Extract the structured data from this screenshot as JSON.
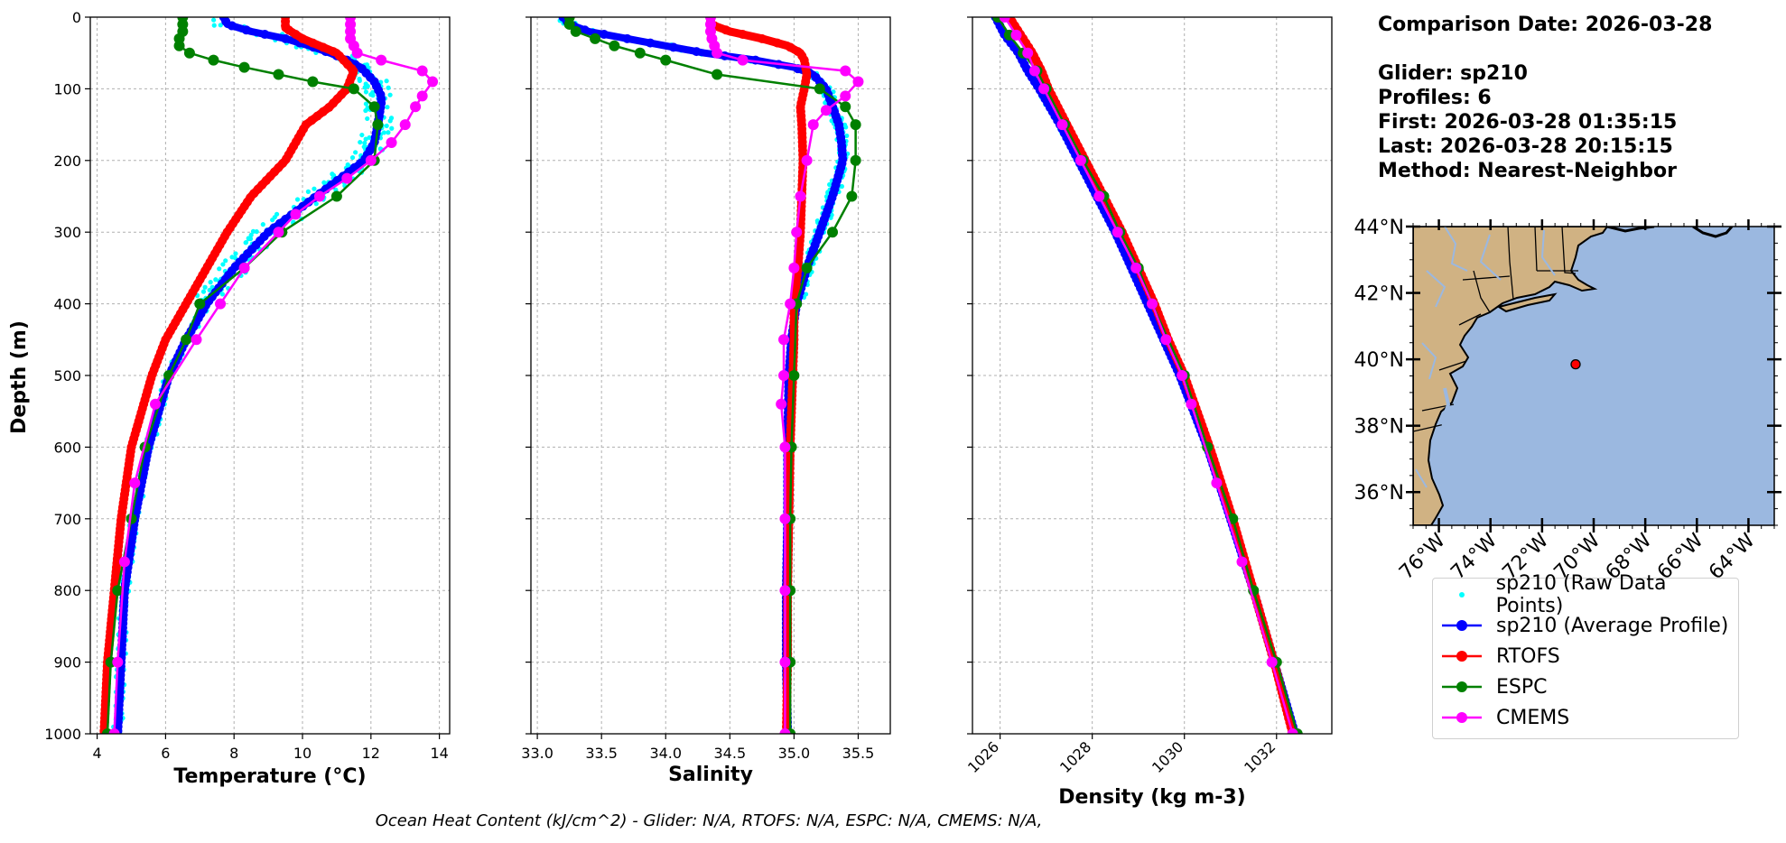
{
  "info": {
    "comparison_date": "Comparison Date: 2026-03-28",
    "glider": "Glider: sp210",
    "profiles": "Profiles: 6",
    "first": "First: 2026-03-28 01:35:15",
    "last": "Last: 2026-03-28 20:15:15",
    "method": "Method: Nearest-Neighbor"
  },
  "footer": "Ocean Heat Content (kJ/cm^2) - Glider: N/A,  RTOFS: N/A,  ESPC: N/A,  CMEMS: N/A,",
  "colors": {
    "raw": "#00ffff",
    "glider": "#0000ff",
    "rtofs": "#ff0000",
    "espc": "#008000",
    "cmems": "#ff00ff",
    "land": "#d0b283",
    "ocean": "#9bb8e0"
  },
  "legend": [
    {
      "key": "raw",
      "label": "sp210 (Raw Data Points)",
      "style": "dot"
    },
    {
      "key": "glider",
      "label": "sp210 (Average Profile)",
      "style": "line"
    },
    {
      "key": "rtofs",
      "label": "RTOFS",
      "style": "line"
    },
    {
      "key": "espc",
      "label": "ESPC",
      "style": "line"
    },
    {
      "key": "cmems",
      "label": "CMEMS",
      "style": "line"
    }
  ],
  "map": {
    "lat_ticks": [
      "44°N",
      "42°N",
      "40°N",
      "38°N",
      "36°N"
    ],
    "lat_values": [
      44,
      42,
      40,
      38,
      36
    ],
    "lon_ticks": [
      "76°W",
      "74°W",
      "72°W",
      "70°W",
      "68°W",
      "66°W",
      "64°W"
    ],
    "lon_values": [
      -76,
      -74,
      -72,
      -70,
      -68,
      -66,
      -64
    ],
    "lon_range": [
      -77,
      -63
    ],
    "lat_range": [
      35,
      44
    ],
    "marker": {
      "lon": -70.7,
      "lat": 39.85
    }
  },
  "chart_data": [
    {
      "type": "line",
      "xlabel": "Temperature (°C)",
      "ylabel": "Depth (m)",
      "xlim": [
        3.8,
        14.3
      ],
      "ylim": [
        1000,
        0
      ],
      "xticks": [
        4,
        6,
        8,
        10,
        12,
        14
      ],
      "yticks": [
        0,
        100,
        200,
        300,
        400,
        500,
        600,
        700,
        800,
        900,
        1000
      ],
      "grid": true,
      "series": [
        {
          "name": "sp210 (Average Profile)",
          "key": "glider",
          "depth": [
            0,
            10,
            20,
            30,
            40,
            50,
            60,
            70,
            80,
            90,
            100,
            110,
            120,
            150,
            175,
            200,
            250,
            300,
            350,
            400,
            450,
            500,
            600,
            700,
            800,
            900,
            1000
          ],
          "values": [
            7.7,
            7.8,
            8.5,
            9.5,
            10.2,
            10.8,
            11.3,
            11.7,
            11.9,
            12.1,
            12.2,
            12.3,
            12.3,
            12.2,
            12.1,
            11.8,
            10.4,
            9.0,
            8.0,
            7.2,
            6.6,
            6.1,
            5.5,
            5.1,
            4.8,
            4.7,
            4.6
          ]
        },
        {
          "name": "RTOFS",
          "key": "rtofs",
          "depth": [
            0,
            15,
            30,
            50,
            75,
            100,
            125,
            150,
            175,
            200,
            250,
            300,
            350,
            400,
            450,
            500,
            600,
            700,
            800,
            900,
            1000
          ],
          "values": [
            9.5,
            9.5,
            10.0,
            11.0,
            11.5,
            11.3,
            10.8,
            10.1,
            9.8,
            9.5,
            8.5,
            7.8,
            7.2,
            6.6,
            6.0,
            5.6,
            5.0,
            4.7,
            4.5,
            4.3,
            4.2
          ]
        },
        {
          "name": "ESPC",
          "key": "espc",
          "depth": [
            0,
            10,
            20,
            30,
            40,
            50,
            60,
            70,
            80,
            90,
            100,
            125,
            150,
            200,
            250,
            300,
            350,
            400,
            450,
            500,
            600,
            700,
            800,
            900,
            1000
          ],
          "values": [
            6.5,
            6.5,
            6.5,
            6.4,
            6.4,
            6.7,
            7.4,
            8.3,
            9.3,
            10.3,
            11.5,
            12.1,
            12.2,
            12.1,
            11.0,
            9.4,
            8.3,
            7.0,
            6.6,
            6.1,
            5.4,
            5.0,
            4.6,
            4.4,
            4.3
          ]
        },
        {
          "name": "CMEMS",
          "key": "cmems",
          "depth": [
            0,
            10,
            20,
            30,
            40,
            50,
            60,
            75,
            90,
            110,
            125,
            150,
            175,
            200,
            225,
            250,
            275,
            300,
            350,
            400,
            450,
            540,
            650,
            760,
            900,
            1000
          ],
          "values": [
            11.4,
            11.4,
            11.4,
            11.4,
            11.5,
            11.6,
            12.3,
            13.5,
            13.8,
            13.5,
            13.3,
            13.0,
            12.6,
            12.0,
            11.3,
            10.5,
            9.8,
            9.3,
            8.3,
            7.6,
            6.9,
            5.7,
            5.1,
            4.8,
            4.6,
            4.5
          ]
        }
      ]
    },
    {
      "type": "line",
      "xlabel": "Salinity",
      "xlim": [
        32.95,
        35.75
      ],
      "ylim": [
        1000,
        0
      ],
      "xticks": [
        33.0,
        33.5,
        34.0,
        34.5,
        35.0,
        35.5
      ],
      "yticks": [
        0,
        100,
        200,
        300,
        400,
        500,
        600,
        700,
        800,
        900,
        1000
      ],
      "grid": true,
      "series": [
        {
          "name": "sp210 (Average Profile)",
          "key": "glider",
          "depth": [
            0,
            10,
            20,
            30,
            40,
            50,
            60,
            70,
            80,
            90,
            100,
            125,
            150,
            175,
            200,
            250,
            300,
            350,
            400,
            450,
            500,
            600,
            700,
            800,
            900,
            1000
          ],
          "values": [
            33.2,
            33.25,
            33.4,
            33.7,
            34.0,
            34.3,
            34.7,
            35.0,
            35.15,
            35.2,
            35.25,
            35.3,
            35.35,
            35.37,
            35.38,
            35.3,
            35.2,
            35.1,
            35.02,
            34.98,
            34.96,
            34.95,
            34.95,
            34.94,
            34.94,
            34.95
          ]
        },
        {
          "name": "RTOFS",
          "key": "rtofs",
          "depth": [
            0,
            10,
            20,
            30,
            40,
            50,
            60,
            80,
            100,
            125,
            150,
            200,
            250,
            300,
            350,
            400,
            450,
            500,
            600,
            700,
            800,
            900,
            1000
          ],
          "values": [
            34.35,
            34.35,
            34.5,
            34.75,
            34.95,
            35.05,
            35.08,
            35.1,
            35.08,
            35.05,
            35.06,
            35.07,
            35.06,
            35.05,
            35.03,
            35.0,
            35.0,
            34.99,
            34.97,
            34.96,
            34.95,
            34.95,
            34.94
          ]
        },
        {
          "name": "ESPC",
          "key": "espc",
          "depth": [
            0,
            10,
            20,
            30,
            40,
            50,
            60,
            80,
            100,
            125,
            150,
            200,
            250,
            300,
            350,
            400,
            500,
            600,
            700,
            800,
            900,
            1000
          ],
          "values": [
            33.25,
            33.25,
            33.3,
            33.45,
            33.6,
            33.8,
            34.0,
            34.4,
            35.2,
            35.4,
            35.48,
            35.48,
            35.45,
            35.3,
            35.1,
            35.02,
            35.0,
            34.98,
            34.97,
            34.97,
            34.97,
            34.97
          ]
        },
        {
          "name": "CMEMS",
          "key": "cmems",
          "depth": [
            0,
            10,
            20,
            30,
            40,
            50,
            60,
            75,
            90,
            110,
            130,
            150,
            200,
            250,
            300,
            350,
            400,
            450,
            500,
            540,
            600,
            700,
            800,
            900,
            1000
          ],
          "values": [
            34.35,
            34.35,
            34.35,
            34.36,
            34.38,
            34.4,
            34.6,
            35.4,
            35.5,
            35.4,
            35.25,
            35.15,
            35.1,
            35.05,
            35.02,
            35.0,
            34.97,
            34.92,
            34.92,
            34.9,
            34.93,
            34.93,
            34.93,
            34.93,
            34.93
          ]
        }
      ]
    },
    {
      "type": "line",
      "xlabel": "Density (kg m-3)",
      "xlim": [
        1025.4,
        1033.2
      ],
      "ylim": [
        1000,
        0
      ],
      "xticks": [
        1026,
        1028,
        1030,
        1032
      ],
      "yticks": [
        0,
        100,
        200,
        300,
        400,
        500,
        600,
        700,
        800,
        900,
        1000
      ],
      "grid": true,
      "series": [
        {
          "name": "sp210 (Average Profile)",
          "key": "glider",
          "depth": [
            0,
            25,
            50,
            75,
            100,
            150,
            200,
            250,
            300,
            350,
            400,
            450,
            500,
            600,
            700,
            800,
            900,
            1000
          ],
          "values": [
            1025.9,
            1026.1,
            1026.4,
            1026.6,
            1026.85,
            1027.3,
            1027.7,
            1028.1,
            1028.5,
            1028.85,
            1029.2,
            1029.55,
            1029.9,
            1030.5,
            1031.0,
            1031.5,
            1031.95,
            1032.4
          ]
        },
        {
          "name": "RTOFS",
          "key": "rtofs",
          "depth": [
            0,
            25,
            50,
            75,
            100,
            150,
            200,
            250,
            300,
            350,
            400,
            450,
            500,
            600,
            700,
            800,
            900,
            1000
          ],
          "values": [
            1026.2,
            1026.45,
            1026.7,
            1026.9,
            1027.05,
            1027.45,
            1027.85,
            1028.25,
            1028.65,
            1029.0,
            1029.35,
            1029.65,
            1030.0,
            1030.55,
            1031.05,
            1031.5,
            1031.95,
            1032.35
          ]
        },
        {
          "name": "ESPC",
          "key": "espc",
          "depth": [
            0,
            25,
            50,
            75,
            100,
            150,
            200,
            250,
            300,
            350,
            400,
            500,
            600,
            700,
            800,
            900,
            1000
          ],
          "values": [
            1025.95,
            1026.2,
            1026.5,
            1026.8,
            1027.0,
            1027.4,
            1027.8,
            1028.25,
            1028.6,
            1029.0,
            1029.3,
            1030.0,
            1030.5,
            1031.05,
            1031.5,
            1032.0,
            1032.45
          ]
        },
        {
          "name": "CMEMS",
          "key": "cmems",
          "depth": [
            0,
            25,
            50,
            75,
            100,
            150,
            200,
            250,
            300,
            350,
            400,
            450,
            500,
            540,
            650,
            760,
            900,
            1000
          ],
          "values": [
            1026.1,
            1026.35,
            1026.6,
            1026.75,
            1026.95,
            1027.35,
            1027.75,
            1028.15,
            1028.55,
            1028.95,
            1029.3,
            1029.6,
            1029.95,
            1030.15,
            1030.7,
            1031.25,
            1031.9,
            1032.35
          ]
        }
      ]
    }
  ]
}
